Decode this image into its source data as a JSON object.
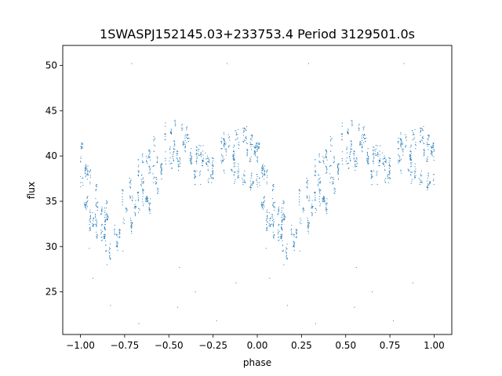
{
  "chart_data": {
    "type": "scatter",
    "title": "1SWASPJ152145.03+233753.4 Period 3129501.0s",
    "xlabel": "phase",
    "ylabel": "flux",
    "xlim": [
      -1.1,
      1.1
    ],
    "ylim": [
      20.3,
      52.2
    ],
    "xticks": [
      -1.0,
      -0.75,
      -0.5,
      -0.25,
      0.0,
      0.25,
      0.5,
      0.75,
      1.0
    ],
    "xtick_labels": [
      "−1.00",
      "−0.75",
      "−0.50",
      "−0.25",
      "0.00",
      "0.25",
      "0.50",
      "0.75",
      "1.00"
    ],
    "yticks": [
      25,
      30,
      35,
      40,
      45,
      50
    ],
    "ytick_labels": [
      "25",
      "30",
      "35",
      "40",
      "45",
      "50"
    ],
    "grid": false,
    "marker_color": "#1f77b4",
    "phase_folded": true,
    "series": [
      {
        "profile": [
          [
            0.0,
            39.2
          ],
          [
            0.05,
            35.5
          ],
          [
            0.1,
            33.5
          ],
          [
            0.15,
            32.0
          ],
          [
            0.2,
            31.5
          ],
          [
            0.25,
            33.0
          ],
          [
            0.3,
            34.8
          ],
          [
            0.35,
            36.5
          ],
          [
            0.4,
            38.0
          ],
          [
            0.45,
            39.5
          ],
          [
            0.5,
            41.0
          ],
          [
            0.55,
            41.5
          ],
          [
            0.6,
            40.0
          ],
          [
            0.65,
            39.0
          ],
          [
            0.7,
            38.8
          ],
          [
            0.75,
            39.0
          ],
          [
            0.8,
            39.8
          ],
          [
            0.85,
            40.5
          ],
          [
            0.9,
            40.0
          ],
          [
            0.95,
            39.6
          ],
          [
            1.0,
            39.2
          ]
        ],
        "scatter_band": [
          [
            0.0,
            4.5
          ],
          [
            0.1,
            4.0
          ],
          [
            0.2,
            3.8
          ],
          [
            0.3,
            4.5
          ],
          [
            0.4,
            5.5
          ],
          [
            0.5,
            4.5
          ],
          [
            0.6,
            3.5
          ],
          [
            0.7,
            2.5
          ],
          [
            0.8,
            3.0
          ],
          [
            0.9,
            3.8
          ],
          [
            1.0,
            4.5
          ]
        ],
        "outliers": [
          [
            0.05,
            29.8
          ],
          [
            0.07,
            26.5
          ],
          [
            0.15,
            28.0
          ],
          [
            0.17,
            23.5
          ],
          [
            0.24,
            29.5
          ],
          [
            0.29,
            50.2
          ],
          [
            0.33,
            21.5
          ],
          [
            0.55,
            23.3
          ],
          [
            0.56,
            27.7
          ],
          [
            0.65,
            25.0
          ],
          [
            0.77,
            21.8
          ],
          [
            0.83,
            50.2
          ],
          [
            0.88,
            26.0
          ]
        ]
      }
    ]
  }
}
